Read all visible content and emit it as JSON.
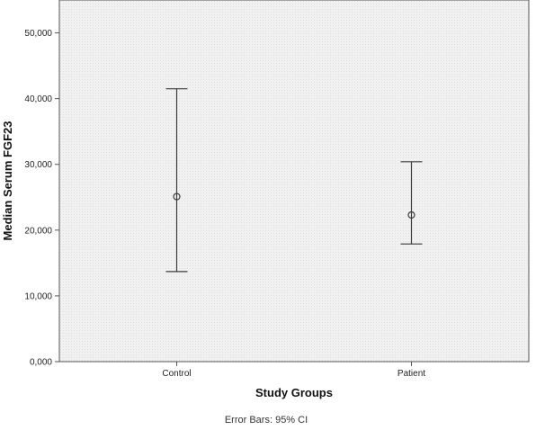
{
  "chart_data": {
    "type": "errorbar",
    "categories": [
      "Control",
      "Patient"
    ],
    "series": [
      {
        "values": [
          25.1,
          22.3
        ],
        "lower": [
          13.7,
          17.9
        ],
        "upper": [
          41.5,
          30.4
        ]
      }
    ],
    "title": "",
    "xlabel": "Study Groups",
    "ylabel": "Median Serum FGF23",
    "ylim": [
      0,
      55
    ],
    "yticks": [
      0,
      10,
      20,
      30,
      40,
      50
    ],
    "ytick_labels": [
      "0,000",
      "10,000",
      "20,000",
      "30,000",
      "40,000",
      "50,000"
    ],
    "grid": false,
    "footnote": "Error Bars: 95% CI",
    "colors": {
      "plot_background": "#efefef",
      "marks": "#3a3a3a",
      "axis": "#555555"
    }
  }
}
